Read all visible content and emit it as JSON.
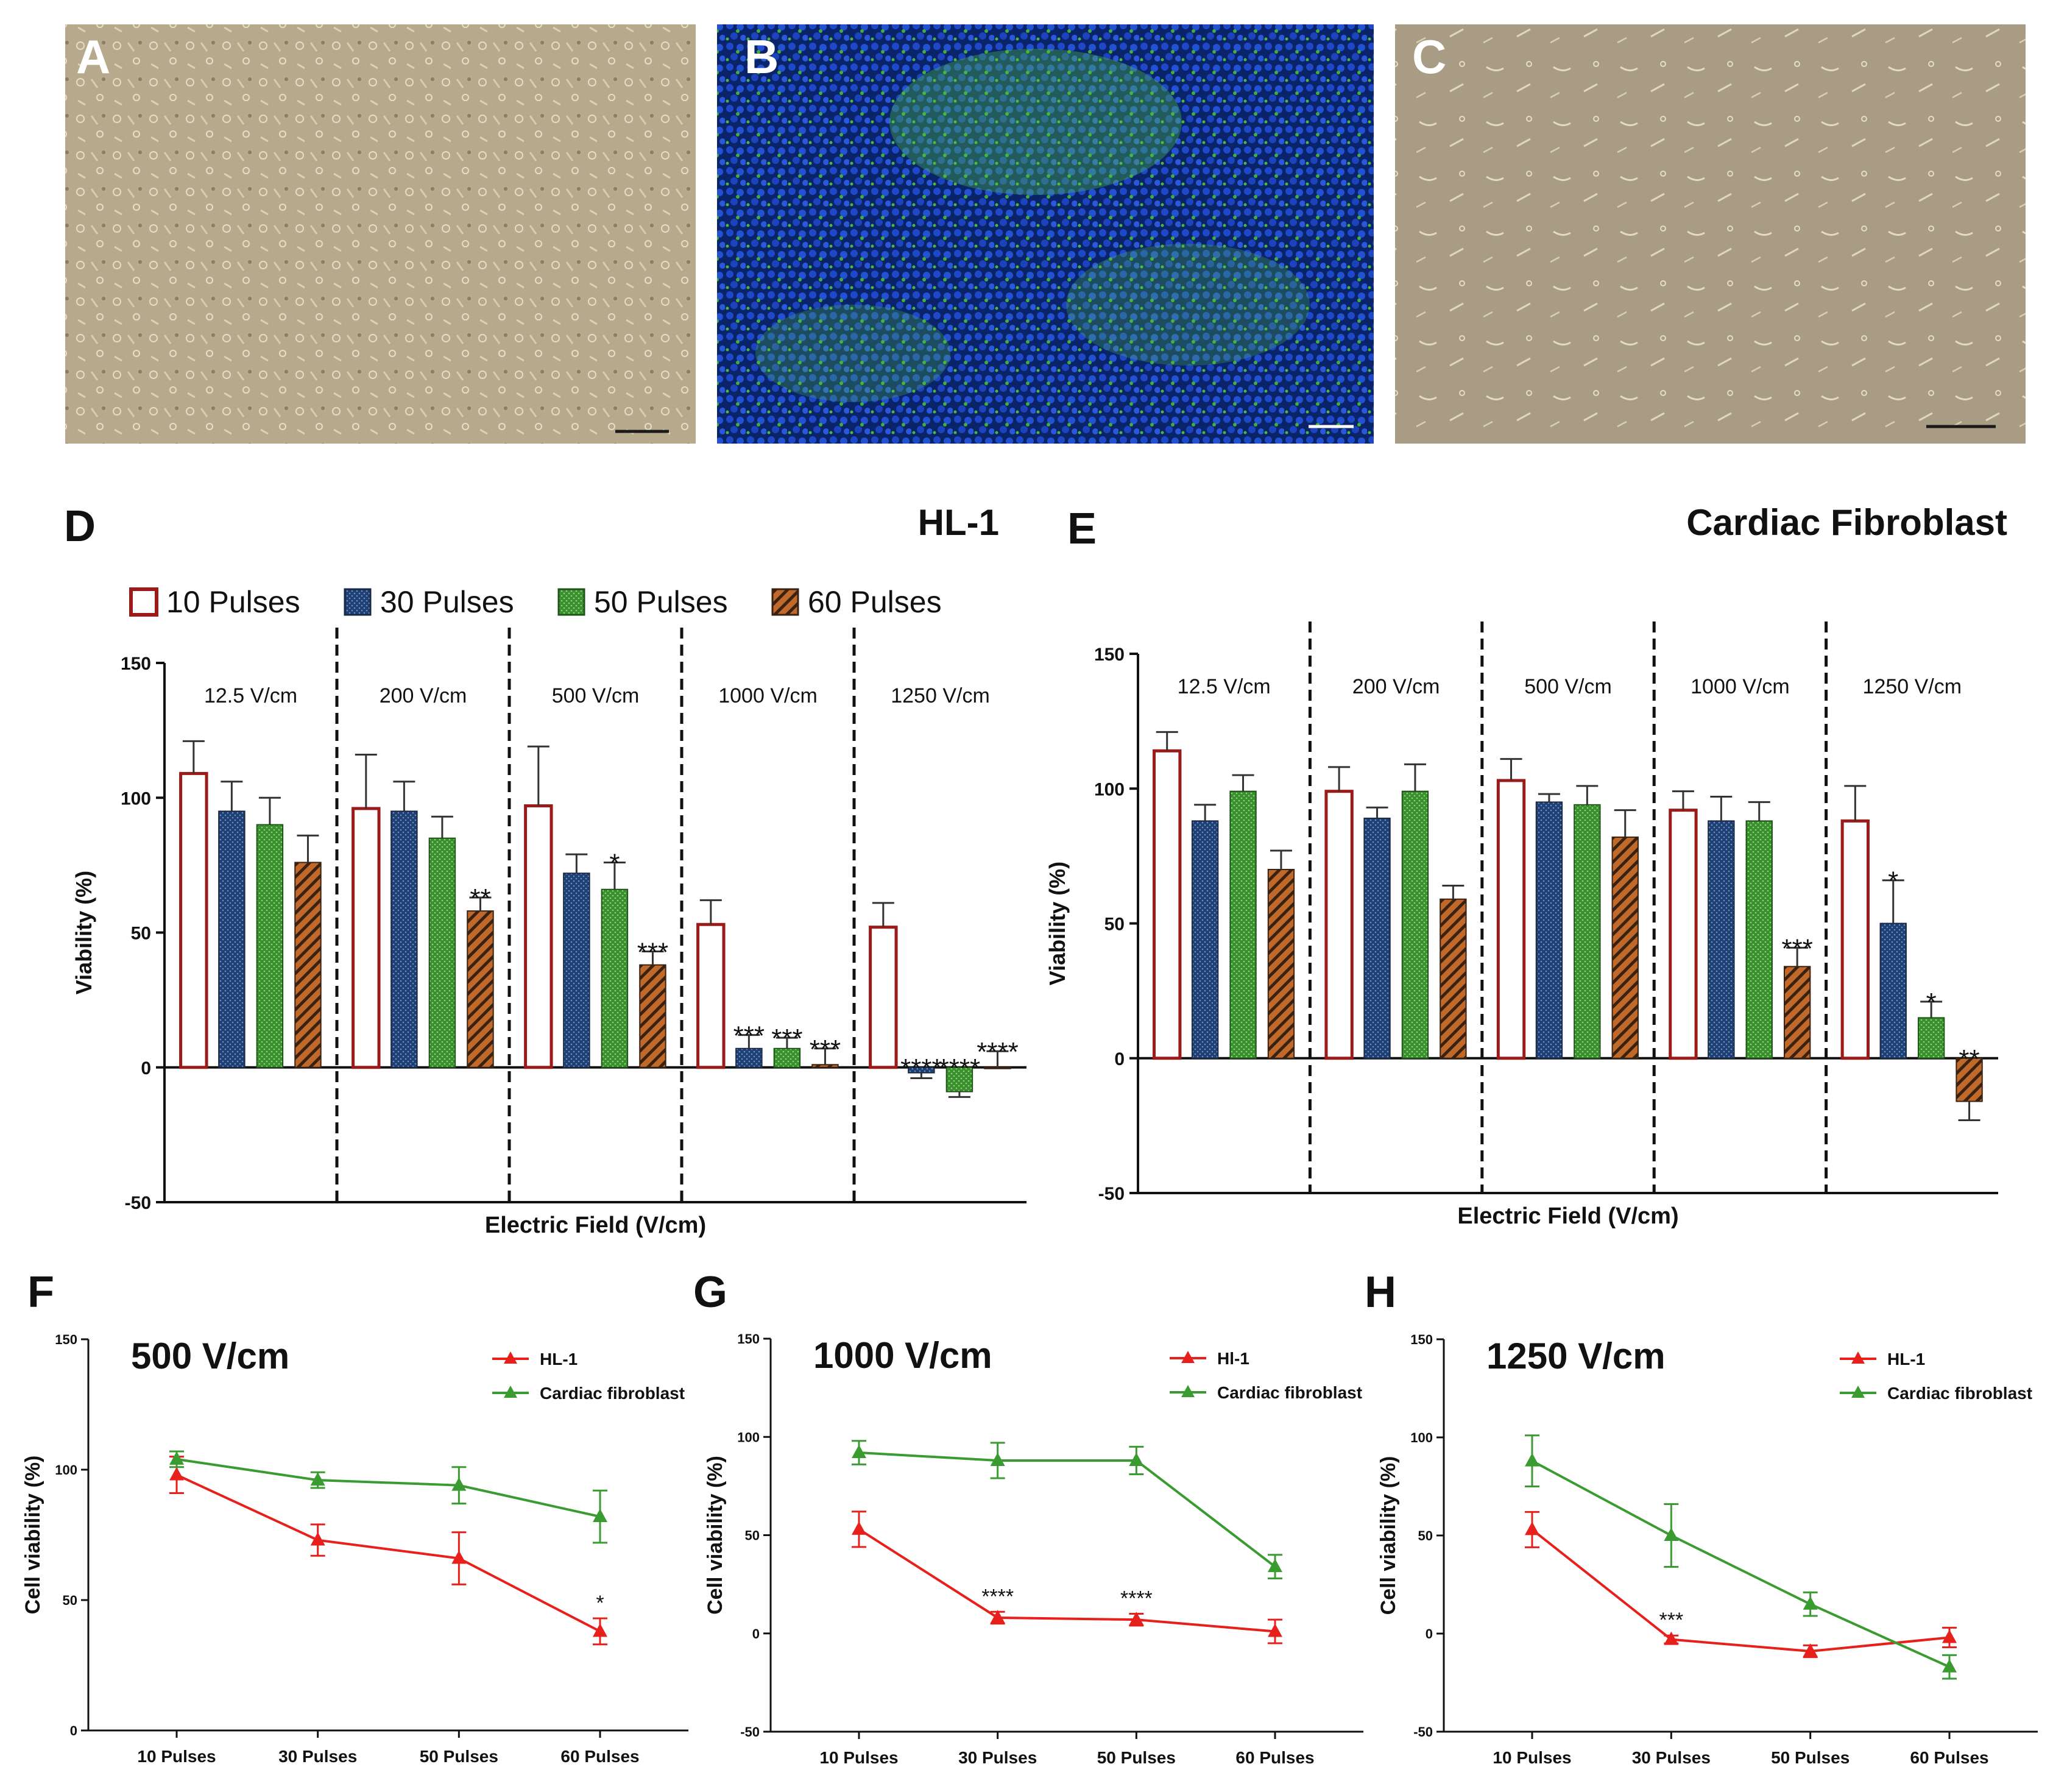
{
  "panels": {
    "A": {
      "letter": "A"
    },
    "B": {
      "letter": "B"
    },
    "C": {
      "letter": "C"
    }
  },
  "colors": {
    "p10_stroke": "#9b1b1b",
    "p30_fill": "#1f3f73",
    "p50_fill": "#3a8f2e",
    "p60_fill": "#b8621e",
    "hl1_line": "#e8201c",
    "fibro_line": "#3a9b30",
    "microscope_bf": "#b9ab8c",
    "fluor_bg": "#0c2c6e",
    "fluor_green": "#5fd24a"
  },
  "chart_data": [
    {
      "id": "D",
      "type": "bar",
      "letter": "D",
      "title": "HL-1",
      "ylabel": "Viability (%)",
      "xlabel": "Electric Field (V/cm)",
      "ylim": [
        -50,
        150
      ],
      "yticks": [
        -50,
        0,
        50,
        100,
        150
      ],
      "legend": [
        "10 Pulses",
        "30 Pulses",
        "50 Pulses",
        "60 Pulses"
      ],
      "legend_position": "top",
      "groups": [
        "12.5 V/cm",
        "200 V/cm",
        "500 V/cm",
        "1000 V/cm",
        "1250 V/cm"
      ],
      "series": [
        {
          "name": "10 Pulses",
          "values": [
            109,
            96,
            97,
            53,
            52
          ],
          "errors": [
            12,
            20,
            22,
            9,
            9
          ]
        },
        {
          "name": "30 Pulses",
          "values": [
            95,
            95,
            72,
            7,
            -2
          ],
          "errors": [
            11,
            11,
            7,
            5,
            2
          ]
        },
        {
          "name": "50 Pulses",
          "values": [
            90,
            85,
            66,
            7,
            -9
          ],
          "errors": [
            10,
            8,
            10,
            4,
            2
          ]
        },
        {
          "name": "60 Pulses",
          "values": [
            76,
            58,
            38,
            1,
            0
          ],
          "errors": [
            10,
            5,
            5,
            6,
            6
          ]
        }
      ],
      "annotations": [
        {
          "group": 1,
          "series": 3,
          "text": "**"
        },
        {
          "group": 2,
          "series": 2,
          "text": "*"
        },
        {
          "group": 2,
          "series": 3,
          "text": "***"
        },
        {
          "group": 3,
          "series": 1,
          "text": "***"
        },
        {
          "group": 3,
          "series": 2,
          "text": "***"
        },
        {
          "group": 3,
          "series": 3,
          "text": "***"
        },
        {
          "group": 4,
          "series": 1,
          "text": "****"
        },
        {
          "group": 4,
          "series": 2,
          "text": "****"
        },
        {
          "group": 4,
          "series": 3,
          "text": "****"
        }
      ]
    },
    {
      "id": "E",
      "type": "bar",
      "letter": "E",
      "title": "Cardiac Fibroblast",
      "ylabel": "Viability (%)",
      "xlabel": "Electric Field (V/cm)",
      "ylim": [
        -50,
        150
      ],
      "yticks": [
        -50,
        0,
        50,
        100,
        150
      ],
      "groups": [
        "12.5 V/cm",
        "200 V/cm",
        "500 V/cm",
        "1000 V/cm",
        "1250 V/cm"
      ],
      "series": [
        {
          "name": "10 Pulses",
          "values": [
            114,
            99,
            103,
            92,
            88
          ],
          "errors": [
            7,
            9,
            8,
            7,
            13
          ]
        },
        {
          "name": "30 Pulses",
          "values": [
            88,
            89,
            95,
            88,
            50
          ],
          "errors": [
            6,
            4,
            3,
            9,
            16
          ]
        },
        {
          "name": "50 Pulses",
          "values": [
            99,
            99,
            94,
            88,
            15
          ],
          "errors": [
            6,
            10,
            7,
            7,
            6
          ]
        },
        {
          "name": "60 Pulses",
          "values": [
            70,
            59,
            82,
            34,
            -16
          ],
          "errors": [
            7,
            5,
            10,
            7,
            7
          ]
        }
      ],
      "annotations": [
        {
          "group": 3,
          "series": 3,
          "text": "***"
        },
        {
          "group": 4,
          "series": 1,
          "text": "*"
        },
        {
          "group": 4,
          "series": 2,
          "text": "*"
        },
        {
          "group": 4,
          "series": 3,
          "text": "**"
        }
      ]
    },
    {
      "id": "F",
      "type": "line",
      "letter": "F",
      "title": "500 V/cm",
      "ylabel": "Cell viability (%)",
      "categories": [
        "10 Pulses",
        "30 Pulses",
        "50 Pulses",
        "60 Pulses"
      ],
      "ylim": [
        0,
        150
      ],
      "yticks": [
        0,
        50,
        100,
        150
      ],
      "series": [
        {
          "name": "HL-1",
          "values": [
            98,
            73,
            66,
            38
          ],
          "errors": [
            7,
            6,
            10,
            5
          ]
        },
        {
          "name": "Cardiac fibroblast",
          "values": [
            104,
            96,
            94,
            82
          ],
          "errors": [
            3,
            3,
            7,
            10
          ]
        }
      ],
      "annotations": [
        {
          "index": 3,
          "text": "*"
        }
      ]
    },
    {
      "id": "G",
      "type": "line",
      "letter": "G",
      "title": "1000 V/cm",
      "ylabel": "Cell viability (%)",
      "categories": [
        "10 Pulses",
        "30 Pulses",
        "50 Pulses",
        "60 Pulses"
      ],
      "ylim": [
        -50,
        150
      ],
      "yticks": [
        -50,
        0,
        50,
        100,
        150
      ],
      "series": [
        {
          "name": "Hl-1",
          "values": [
            53,
            8,
            7,
            1
          ],
          "errors": [
            9,
            3,
            3,
            6
          ]
        },
        {
          "name": "Cardiac fibroblast",
          "values": [
            92,
            88,
            88,
            34
          ],
          "errors": [
            6,
            9,
            7,
            6
          ]
        }
      ],
      "annotations": [
        {
          "index": 1,
          "text": "****"
        },
        {
          "index": 2,
          "text": "****"
        }
      ]
    },
    {
      "id": "H",
      "type": "line",
      "letter": "H",
      "title": "1250 V/cm",
      "ylabel": "Cell viability (%)",
      "categories": [
        "10 Pulses",
        "30 Pulses",
        "50 Pulses",
        "60 Pulses"
      ],
      "ylim": [
        -50,
        150
      ],
      "yticks": [
        -50,
        0,
        50,
        100,
        150
      ],
      "series": [
        {
          "name": "HL-1",
          "values": [
            53,
            -3,
            -9,
            -2
          ],
          "errors": [
            9,
            2,
            3,
            5
          ]
        },
        {
          "name": "Cardiac fibroblast",
          "values": [
            88,
            50,
            15,
            -17
          ],
          "errors": [
            13,
            16,
            6,
            6
          ]
        }
      ],
      "annotations": [
        {
          "index": 1,
          "text": "***"
        }
      ]
    }
  ]
}
